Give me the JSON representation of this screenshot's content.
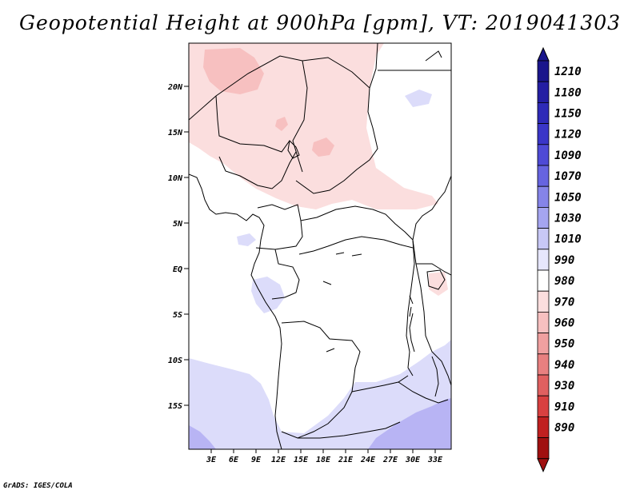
{
  "title": "Geopotential Height at 900hPa [gpm], VT: 2019041303",
  "credit": "GrADS: IGES/COLA",
  "lat_ticks": [
    "20N",
    "15N",
    "10N",
    "5N",
    "EQ",
    "5S",
    "10S",
    "15S"
  ],
  "lon_ticks": [
    "3E",
    "6E",
    "9E",
    "12E",
    "15E",
    "18E",
    "21E",
    "24E",
    "27E",
    "30E",
    "33E"
  ],
  "colorbar": {
    "labels": [
      "1210",
      "1180",
      "1150",
      "1120",
      "1090",
      "1070",
      "1050",
      "1030",
      "1010",
      "990",
      "980",
      "970",
      "960",
      "950",
      "940",
      "930",
      "910",
      "890"
    ],
    "colors": [
      "#1a168c",
      "#241ea3",
      "#2e2ab8",
      "#3a36c8",
      "#4e4ad6",
      "#6664e0",
      "#8584e8",
      "#a5a5f0",
      "#c8c8f6",
      "#e6e6fc",
      "#ffffff",
      "#fbdede",
      "#f7c0c0",
      "#f0a0a0",
      "#e88080",
      "#e06060",
      "#d84040",
      "#c02020",
      "#a01010"
    ],
    "under_color": "#a01010",
    "over_color": "#1a168c"
  },
  "map_colors": {
    "land_white": "#ffffff",
    "pink_light": "#fbdede",
    "pink_mid": "#f7c0c0",
    "blue_light": "#dcdcfa",
    "blue_mid": "#b8b4f4"
  }
}
